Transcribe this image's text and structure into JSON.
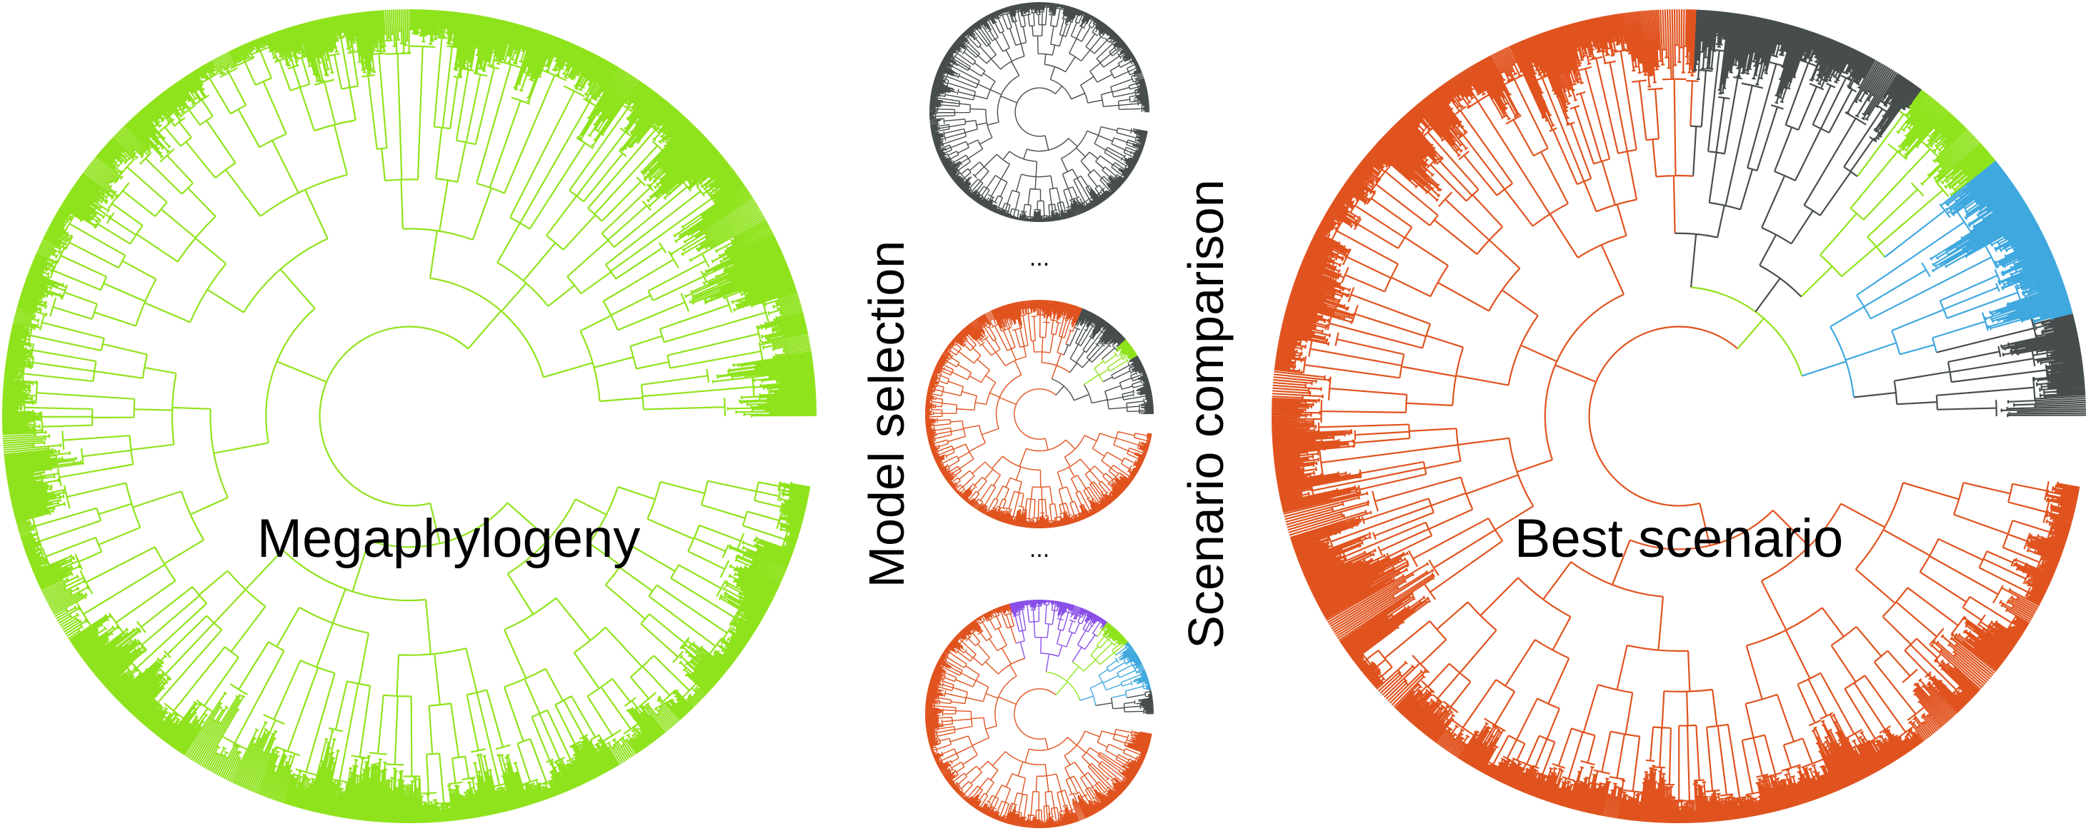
{
  "labels": {
    "megaphylogeny": "Megaphylogeny",
    "model_selection": "Model selection",
    "scenario_comparison": "Scenario comparison",
    "best_scenario": "Best scenario",
    "ellipsis_top": "...",
    "ellipsis_bottom": "..."
  },
  "colors": {
    "green": "#8fe31c",
    "orange": "#e0531f",
    "dark": "#474d4d",
    "blue": "#3fa8df",
    "purple": "#8a4fe8",
    "background": "#ffffff"
  },
  "panels": [
    {
      "id": "megaphylogeny",
      "segments": [
        {
          "from": 0,
          "to": 360,
          "color": "green"
        }
      ]
    },
    {
      "id": "model-1",
      "segments": [
        {
          "from": 0,
          "to": 360,
          "color": "dark"
        }
      ]
    },
    {
      "id": "model-2",
      "segments": [
        {
          "from": 0,
          "to": 290,
          "color": "orange"
        },
        {
          "from": 290,
          "to": 318,
          "color": "dark"
        },
        {
          "from": 318,
          "to": 328,
          "color": "green"
        },
        {
          "from": 328,
          "to": 360,
          "color": "dark"
        }
      ]
    },
    {
      "id": "model-3",
      "segments": [
        {
          "from": 0,
          "to": 252,
          "color": "orange"
        },
        {
          "from": 252,
          "to": 305,
          "color": "purple"
        },
        {
          "from": 305,
          "to": 320,
          "color": "green"
        },
        {
          "from": 320,
          "to": 348,
          "color": "blue"
        },
        {
          "from": 348,
          "to": 360,
          "color": "dark"
        }
      ]
    },
    {
      "id": "best-scenario",
      "segments": [
        {
          "from": 0,
          "to": 270,
          "color": "orange"
        },
        {
          "from": 270,
          "to": 305,
          "color": "dark"
        },
        {
          "from": 305,
          "to": 320,
          "color": "green"
        },
        {
          "from": 320,
          "to": 345,
          "color": "blue"
        },
        {
          "from": 345,
          "to": 360,
          "color": "dark"
        }
      ]
    }
  ]
}
